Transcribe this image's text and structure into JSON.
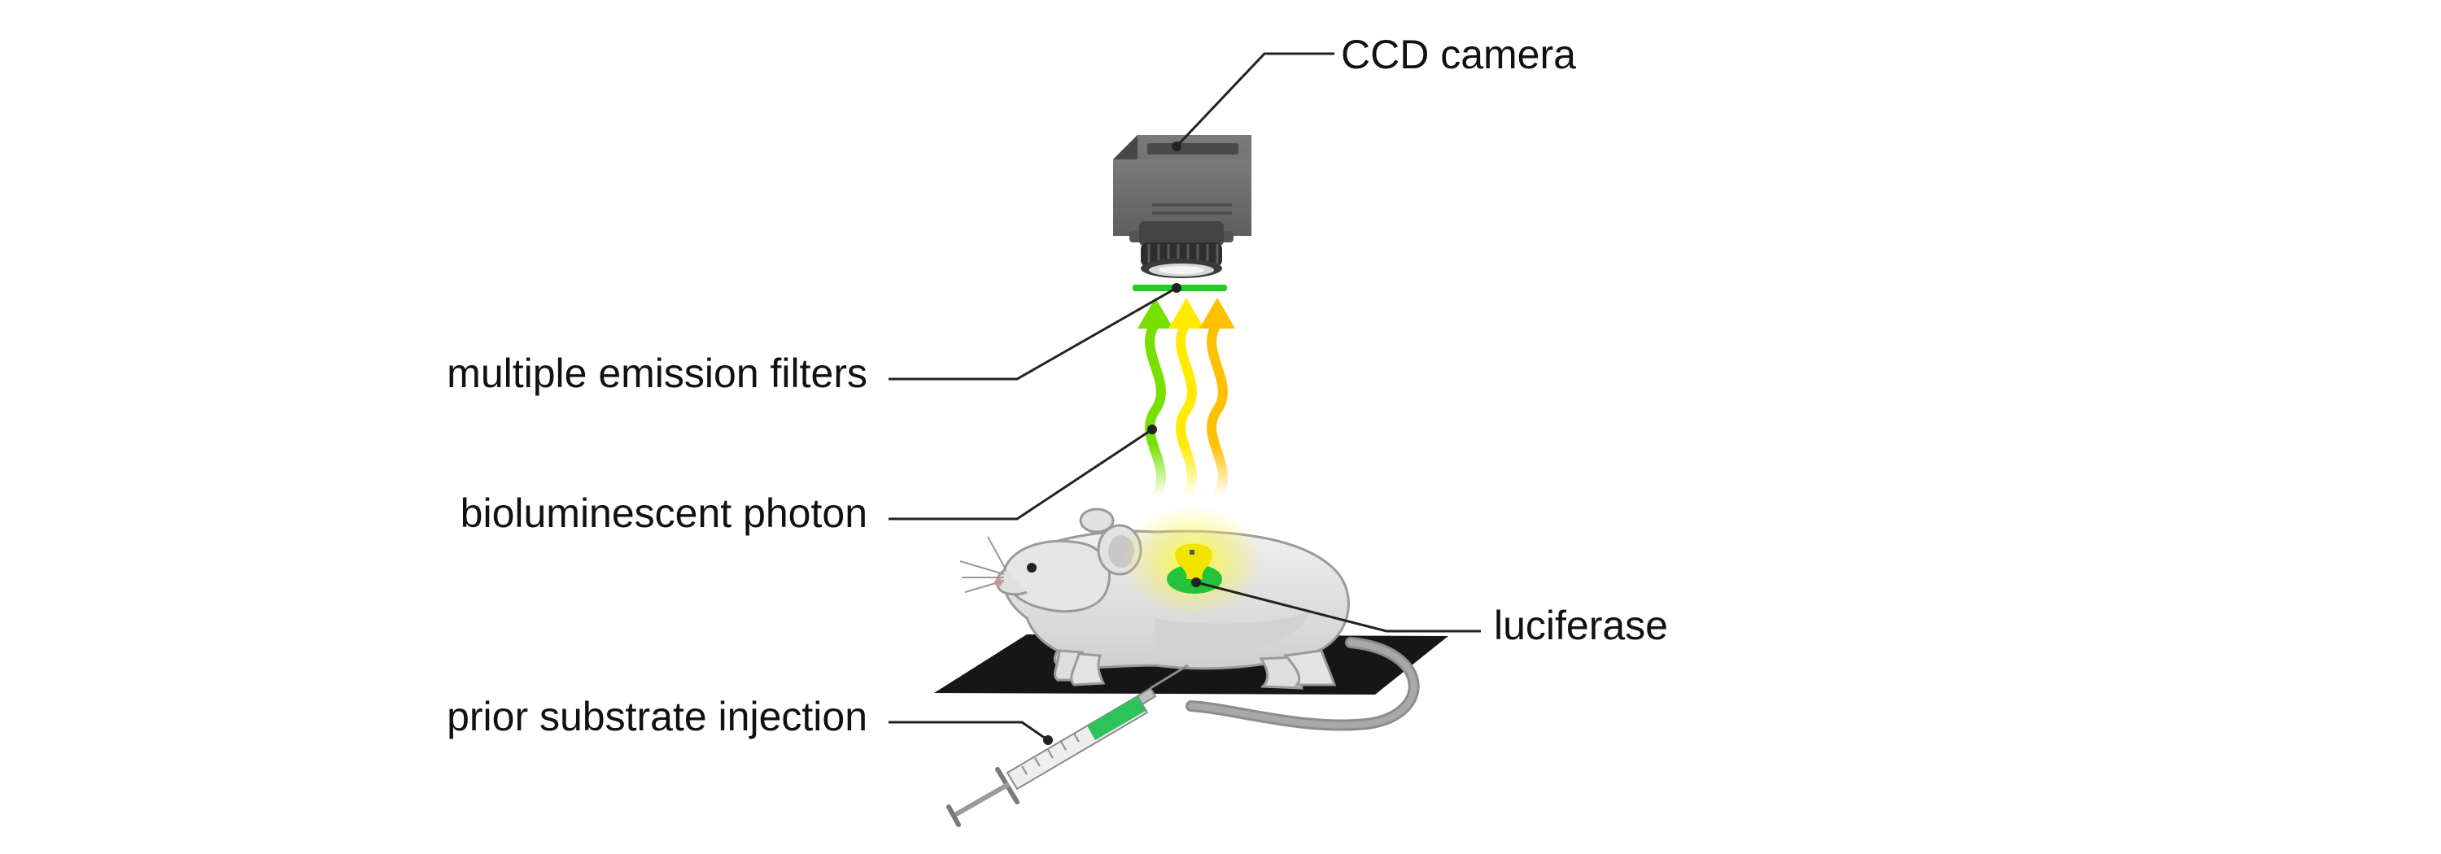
{
  "labels": {
    "camera": "CCD camera",
    "filters": "multiple emission filters",
    "photon": "bioluminescent photon",
    "luciferase": "luciferase",
    "injection": "prior substrate injection"
  },
  "icons": [
    "ccd-camera-icon",
    "emission-filter-icon",
    "photon-wave-icon",
    "mouse-icon",
    "luciferase-spot-icon",
    "imaging-stage-icon",
    "syringe-icon"
  ],
  "colors": {
    "camera_body": "#6e6e6e",
    "camera_dark": "#3c3c3c",
    "filter_bar": "#22cc22",
    "photon_green": "#7ee000",
    "photon_yellow": "#ffee00",
    "photon_orange": "#ffc000",
    "mouse_body": "#e4e4e4",
    "mouse_outline": "#9a9a9a",
    "stage": "#1a1a1a",
    "luciferase_yellow": "#f2e400",
    "luciferase_green": "#22c43a",
    "syringe_fluid": "#2ec25a",
    "leader_line": "#222222"
  }
}
